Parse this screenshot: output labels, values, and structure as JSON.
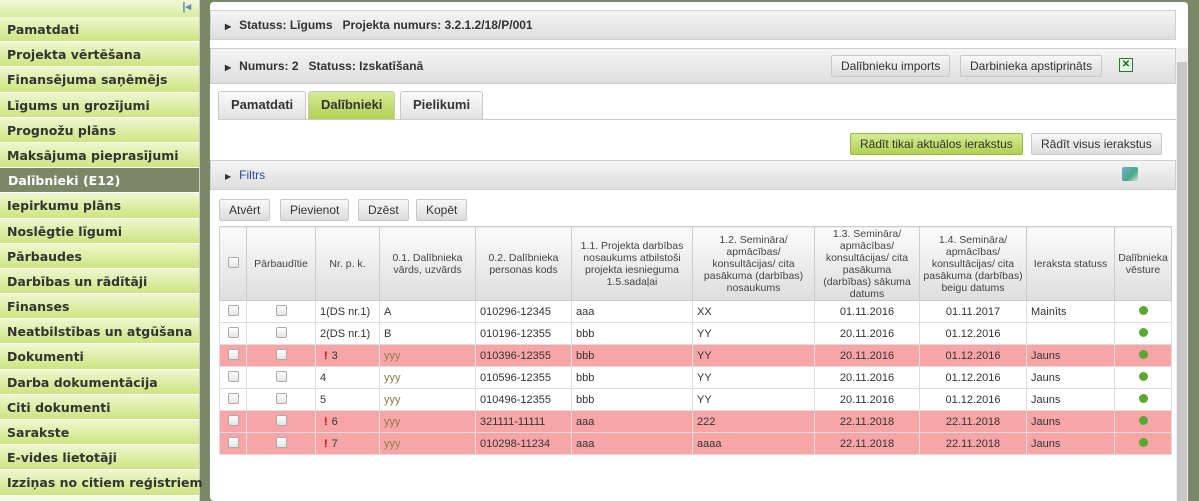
{
  "sidebar": {
    "collapse_icon": "collapse-left-icon",
    "items": [
      "Pamatdati",
      "Projekta vērtēšana",
      "Finansējuma saņēmējs",
      "Līgums un grozījumi",
      "Prognožu plāns",
      "Maksājuma pieprasījumi",
      "Dalībnieki (E12)",
      "Iepirkumu plāns",
      "Noslēgtie līgumi",
      "Pārbaudes",
      "Darbības un rādītāji",
      "Finanses",
      "Neatbilstības un atgūšana",
      "Dokumenti",
      "Darba dokumentācija",
      "Citi dokumenti",
      "Sarakste",
      "E-vides lietotāji",
      "Izziņas no citiem reģistriem"
    ],
    "active": "Dalībnieki (E12)"
  },
  "header": {
    "status_line": "Statuss: Līgums   Projekta numurs: 3.2.1.2/18/P/001",
    "number_line": "Numurs: 2   Statuss: Izskatīšanā",
    "import_button": "Dalībnieku imports",
    "approve_button": "Darbinieka apstiprināts"
  },
  "tabs": [
    "Pamatdati",
    "Dalībnieki",
    "Pielikumi"
  ],
  "active_tab": "Dalībnieki",
  "view_toggle": {
    "current": "Rādīt tikai aktuālos ierakstus",
    "all": "Rādīt visus ierakstus"
  },
  "filter": {
    "label": "Filtrs"
  },
  "actions": [
    "Atvērt",
    "Pievienot",
    "Dzēst",
    "Kopēt"
  ],
  "table": {
    "headers": [
      "Pārbaudītie",
      "Nr. p. k.",
      "0.1. Dalībnieka vārds, uzvārds",
      "0.2. Dalībnieka personas kods",
      "1.1. Projekta darbības nosaukums atbilstoši projekta iesnieguma 1.5.sadaļai",
      "1.2. Semināra/ apmācības/ konsultācijas/ cita pasākuma (darbības) nosaukums",
      "1.3. Semināra/ apmācības/ konsultācijas/ cita pasākuma (darbības) sākuma datums",
      "1.4. Semināra/ apmācības/ konsultācijas/ cita pasākuma (darbības) beigu datums",
      "Ieraksta statuss",
      "Dalībnieka vēsture"
    ],
    "rows": [
      {
        "nr": "1(DS nr.1)",
        "name": "A",
        "code": "010296-12345",
        "activity": "aaa",
        "event": "XX",
        "start": "01.11.2016",
        "end": "01.11.2017",
        "status": "Mainīts",
        "warn": false
      },
      {
        "nr": "2(DS nr.1)",
        "name": "B",
        "code": "010196-12355",
        "activity": "bbb",
        "event": "YY",
        "start": "20.11.2016",
        "end": "01.12.2016",
        "status": "",
        "warn": false
      },
      {
        "nr": "3",
        "name": "yyy",
        "code": "010396-12355",
        "activity": "bbb",
        "event": "YY",
        "start": "20.11.2016",
        "end": "01.12.2016",
        "status": "Jauns",
        "warn": true
      },
      {
        "nr": "4",
        "name": "yyy",
        "code": "010596-12355",
        "activity": "bbb",
        "event": "YY",
        "start": "20.11.2016",
        "end": "01.12.2016",
        "status": "Jauns",
        "warn": false
      },
      {
        "nr": "5",
        "name": "yyy",
        "code": "010496-12355",
        "activity": "bbb",
        "event": "YY",
        "start": "20.11.2016",
        "end": "01.12.2016",
        "status": "Jauns",
        "warn": false
      },
      {
        "nr": "6",
        "name": "yyy",
        "code": "321111-11111",
        "activity": "aaa",
        "event": "222",
        "start": "22.11.2018",
        "end": "22.11.2018",
        "status": "Jauns",
        "warn": true
      },
      {
        "nr": "7",
        "name": "yyy",
        "code": "010298-11234",
        "activity": "aaa",
        "event": "aaaa",
        "start": "22.11.2018",
        "end": "22.11.2018",
        "status": "Jauns",
        "warn": true
      }
    ]
  },
  "colors": {
    "sidebar_green": "#cde57f",
    "active_nav": "#7b8868",
    "warning_row": "#f8a5a8",
    "active_button": "#b0d152"
  }
}
